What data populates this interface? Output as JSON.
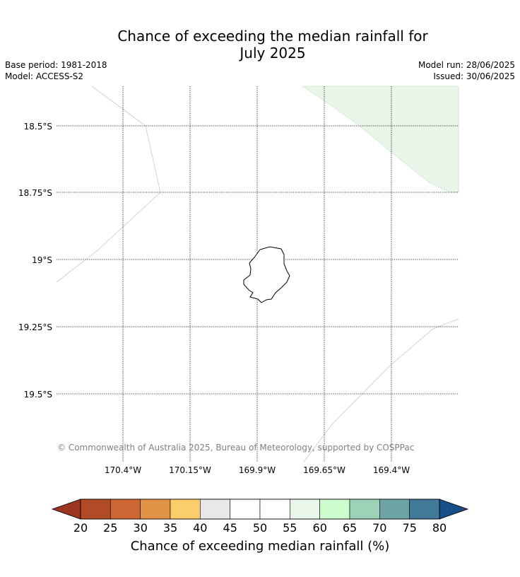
{
  "title": {
    "line1": "Chance of exceeding the median rainfall for",
    "line2": "July 2025"
  },
  "meta": {
    "base_period": "Base period: 1981-2018",
    "model": "Model: ACCESS-S2",
    "model_run": "Model run: 28/06/2025",
    "issued": "Issued: 30/06/2025"
  },
  "map": {
    "lat_labels": [
      "18.5°S",
      "18.75°S",
      "19°S",
      "19.25°S",
      "19.5°S"
    ],
    "lon_labels": [
      "170.4°W",
      "170.15°W",
      "169.9°W",
      "169.65°W",
      "169.4°W"
    ],
    "copyright": "© Commonwealth of Australia 2025, Bureau of Meteorology, supported by COSPPac",
    "shaded_region_color": "#e8f5e8",
    "land_outline": "Niue"
  },
  "colorbar": {
    "label": "Chance of exceeding median rainfall (%)",
    "ticks": [
      "20",
      "25",
      "30",
      "35",
      "40",
      "45",
      "50",
      "55",
      "60",
      "65",
      "70",
      "75",
      "80"
    ],
    "low_extend_color": "#9c3620",
    "high_extend_color": "#174f87",
    "colors": [
      "#b14a26",
      "#cf6735",
      "#e29446",
      "#fcce6b",
      "#e8e8e8",
      "#ffffff",
      "#ffffff",
      "#eaf6ea",
      "#cdfccd",
      "#9dd2b8",
      "#6ea3a6",
      "#427b99"
    ]
  }
}
